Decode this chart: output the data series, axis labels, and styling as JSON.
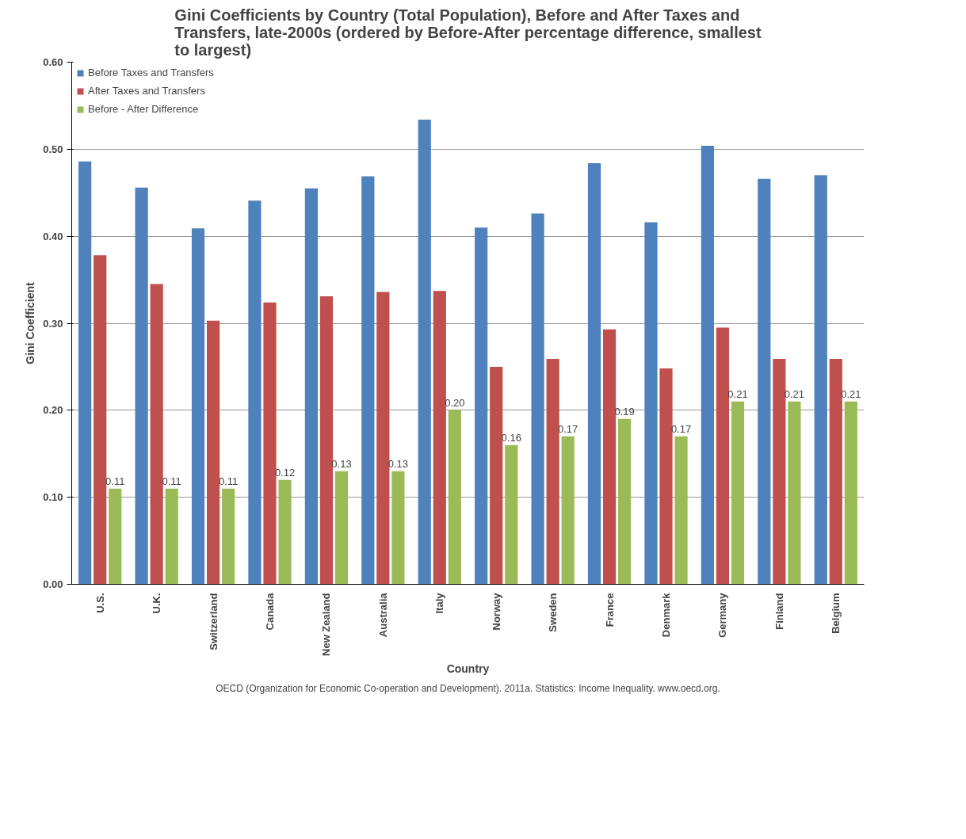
{
  "chart_data": {
    "type": "bar",
    "title": "Gini Coefficients by Country (Total Population), Before and After Taxes and Transfers, late-2000s (ordered by Before-After percentage difference, smallest to largest)",
    "xlabel": "Country",
    "ylabel": "Gini Coefficient",
    "categories": [
      "U.S.",
      "U.K.",
      "Switzerland",
      "Canada",
      "New Zealand",
      "Australia",
      "Italy",
      "Norway",
      "Sweden",
      "France",
      "Denmark",
      "Germany",
      "Finland",
      "Belgium"
    ],
    "series": [
      {
        "name": "Before Taxes and Transfers",
        "color": "#4f81bd",
        "values": [
          0.486,
          0.456,
          0.409,
          0.441,
          0.455,
          0.469,
          0.534,
          0.41,
          0.426,
          0.484,
          0.416,
          0.504,
          0.466,
          0.47
        ]
      },
      {
        "name": "After Taxes and Transfers",
        "color": "#c0504d",
        "values": [
          0.378,
          0.345,
          0.303,
          0.324,
          0.331,
          0.336,
          0.337,
          0.25,
          0.259,
          0.293,
          0.248,
          0.295,
          0.259,
          0.259
        ]
      },
      {
        "name": "Before - After Difference",
        "color": "#9bbb59",
        "values": [
          0.11,
          0.11,
          0.11,
          0.12,
          0.13,
          0.13,
          0.2,
          0.16,
          0.17,
          0.19,
          0.17,
          0.21,
          0.21,
          0.21
        ],
        "value_labels": [
          "0.11",
          "0.11",
          "0.11",
          "0.12",
          "0.13",
          "0.13",
          "0.20",
          "0.16",
          "0.17",
          "0.19",
          "0.17",
          "0.21",
          "0.21",
          "0.21"
        ]
      }
    ],
    "ylim": [
      0,
      0.6
    ],
    "yticks": [
      {
        "value": 0,
        "label": "0.00"
      },
      {
        "value": 0.1,
        "label": "0.10"
      },
      {
        "value": 0.2,
        "label": "0.20"
      },
      {
        "value": 0.3,
        "label": "0.30"
      },
      {
        "value": 0.4,
        "label": "0.40"
      },
      {
        "value": 0.5,
        "label": "0.50"
      },
      {
        "value": 0.6,
        "label": "0.60"
      }
    ],
    "grid": "y",
    "legend": "top left",
    "annotations": [
      "OECD (Organization for Economic Co-operation and Development). 2011a. Statistics: Income Inequality. www.oecd.org."
    ]
  }
}
